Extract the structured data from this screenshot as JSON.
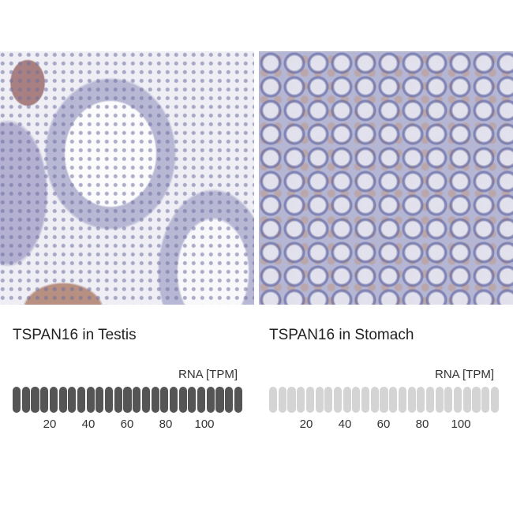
{
  "panels": [
    {
      "title": "TSPAN16 in Testis",
      "unit_label": "RNA [TPM]",
      "bar_count": 25,
      "filled_bars": 25,
      "filled_color": "#555555",
      "empty_color": "#d4d4d4",
      "ticks": [
        "20",
        "40",
        "60",
        "80",
        "100"
      ]
    },
    {
      "title": "TSPAN16 in Stomach",
      "unit_label": "RNA [TPM]",
      "bar_count": 25,
      "filled_bars": 0,
      "filled_color": "#555555",
      "empty_color": "#d4d4d4",
      "ticks": [
        "20",
        "40",
        "60",
        "80",
        "100"
      ]
    }
  ]
}
